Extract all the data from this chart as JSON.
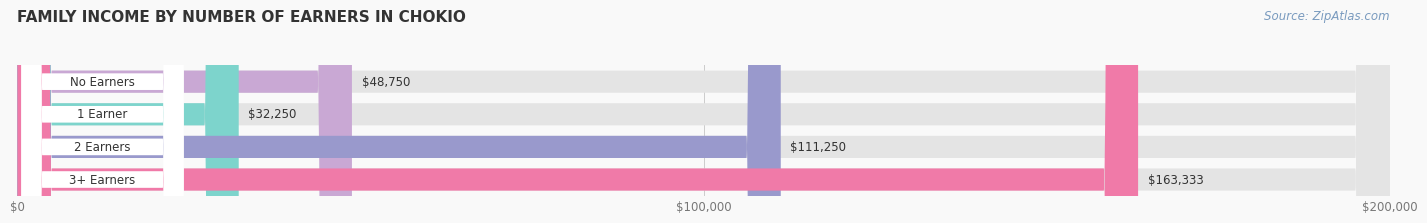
{
  "title": "FAMILY INCOME BY NUMBER OF EARNERS IN CHOKIO",
  "source": "Source: ZipAtlas.com",
  "categories": [
    "No Earners",
    "1 Earner",
    "2 Earners",
    "3+ Earners"
  ],
  "values": [
    48750,
    32250,
    111250,
    163333
  ],
  "bar_colors": [
    "#c9a8d4",
    "#7dd4cc",
    "#9999cc",
    "#f07aa8"
  ],
  "labels": [
    "$48,750",
    "$32,250",
    "$111,250",
    "$163,333"
  ],
  "xlim": [
    0,
    200000
  ],
  "xticks": [
    0,
    100000,
    200000
  ],
  "xtick_labels": [
    "$0",
    "$100,000",
    "$200,000"
  ],
  "title_fontsize": 11,
  "label_fontsize": 8.5,
  "tick_fontsize": 8.5,
  "source_fontsize": 8.5,
  "background_color": "#f9f9f9",
  "bar_height": 0.68,
  "bar_bg_color": "#e4e4e4",
  "category_label_color": "#333333",
  "value_label_color": "#333333",
  "pill_color": "#ffffff",
  "grid_color": "#cccccc",
  "source_color": "#7a9bbf",
  "title_color": "#333333",
  "tick_color": "#777777"
}
